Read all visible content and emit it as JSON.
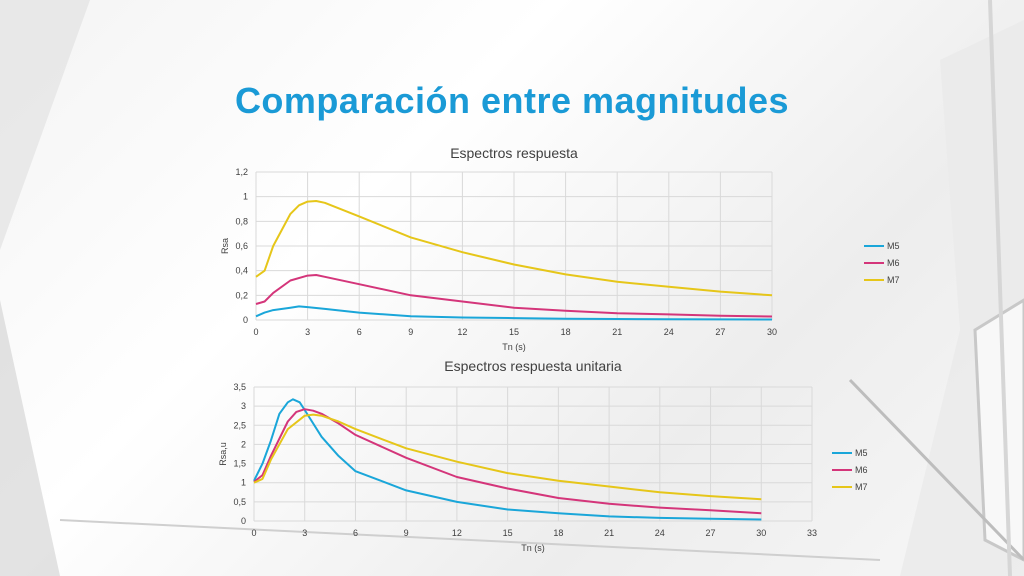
{
  "slide": {
    "title": "Comparación entre magnitudes"
  },
  "colors": {
    "title": "#1a9ad6",
    "M5": "#1aa6d9",
    "M6": "#d4357a",
    "M7": "#e6c619",
    "grid": "#d9d9d9"
  },
  "chart_data": [
    {
      "type": "line",
      "title": "Espectros respuesta",
      "xlabel": "Tn (s)",
      "ylabel": "Rsa",
      "xlim": [
        0,
        30
      ],
      "ylim": [
        0,
        1.2
      ],
      "xticks": [
        "0",
        "3",
        "6",
        "9",
        "12",
        "15",
        "18",
        "21",
        "24",
        "27",
        "30"
      ],
      "yticks": [
        "0",
        "0,2",
        "0,4",
        "0,6",
        "0,8",
        "1",
        "1,2"
      ],
      "grid": true,
      "legend": "right",
      "series": [
        {
          "name": "M5",
          "x": [
            0,
            0.5,
            1,
            2,
            2.5,
            3,
            4,
            6,
            9,
            12,
            15,
            18,
            21,
            24,
            27,
            30
          ],
          "y": [
            0.03,
            0.06,
            0.08,
            0.1,
            0.11,
            0.105,
            0.09,
            0.06,
            0.03,
            0.02,
            0.015,
            0.01,
            0.008,
            0.006,
            0.005,
            0.004
          ]
        },
        {
          "name": "M6",
          "x": [
            0,
            0.5,
            1,
            2,
            3,
            3.5,
            4,
            6,
            9,
            12,
            15,
            18,
            21,
            24,
            27,
            30
          ],
          "y": [
            0.13,
            0.15,
            0.22,
            0.32,
            0.36,
            0.365,
            0.35,
            0.29,
            0.2,
            0.15,
            0.1,
            0.075,
            0.055,
            0.045,
            0.035,
            0.028
          ]
        },
        {
          "name": "M7",
          "x": [
            0,
            0.5,
            1,
            2,
            2.5,
            3,
            3.5,
            4,
            6,
            9,
            12,
            15,
            18,
            21,
            24,
            27,
            30
          ],
          "y": [
            0.35,
            0.4,
            0.6,
            0.86,
            0.93,
            0.96,
            0.965,
            0.95,
            0.84,
            0.67,
            0.55,
            0.45,
            0.37,
            0.31,
            0.27,
            0.23,
            0.2
          ]
        }
      ]
    },
    {
      "type": "line",
      "title": "Espectros respuesta unitaria",
      "xlabel": "Tn (s)",
      "ylabel": "Rsa,u",
      "xlim": [
        0,
        33
      ],
      "ylim": [
        0,
        3.5
      ],
      "xticks": [
        "0",
        "3",
        "6",
        "9",
        "12",
        "15",
        "18",
        "21",
        "24",
        "27",
        "30",
        "33"
      ],
      "yticks": [
        "0",
        "0,5",
        "1",
        "1,5",
        "2",
        "2,5",
        "3",
        "3,5"
      ],
      "grid": true,
      "legend": "right",
      "series": [
        {
          "name": "M5",
          "x": [
            0,
            0.5,
            1,
            1.5,
            2,
            2.3,
            2.7,
            3,
            4,
            5,
            6,
            9,
            12,
            15,
            18,
            21,
            24,
            27,
            30
          ],
          "y": [
            1.05,
            1.5,
            2.1,
            2.8,
            3.1,
            3.18,
            3.1,
            2.9,
            2.2,
            1.7,
            1.3,
            0.8,
            0.5,
            0.3,
            0.2,
            0.12,
            0.08,
            0.06,
            0.04
          ]
        },
        {
          "name": "M6",
          "x": [
            0,
            0.5,
            1,
            2,
            2.5,
            3,
            3.5,
            4,
            5,
            6,
            9,
            12,
            15,
            18,
            21,
            24,
            27,
            30
          ],
          "y": [
            1.02,
            1.2,
            1.7,
            2.6,
            2.85,
            2.92,
            2.88,
            2.8,
            2.55,
            2.25,
            1.65,
            1.15,
            0.85,
            0.6,
            0.45,
            0.35,
            0.28,
            0.2
          ]
        },
        {
          "name": "M7",
          "x": [
            0,
            0.5,
            1,
            2,
            3,
            3.5,
            4,
            5,
            6,
            9,
            12,
            15,
            18,
            21,
            24,
            27,
            30
          ],
          "y": [
            1.0,
            1.1,
            1.6,
            2.4,
            2.75,
            2.78,
            2.75,
            2.6,
            2.4,
            1.9,
            1.55,
            1.25,
            1.05,
            0.9,
            0.75,
            0.65,
            0.57
          ]
        }
      ]
    }
  ]
}
